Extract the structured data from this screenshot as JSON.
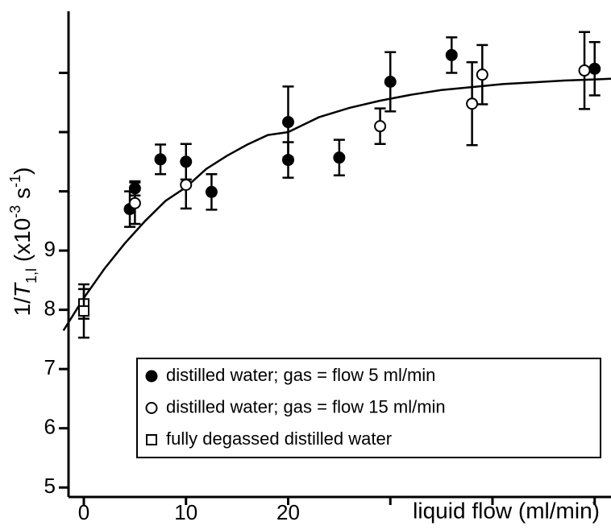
{
  "chart_data": {
    "type": "scatter",
    "xlabel": "liquid flow (ml/min)",
    "ylabel": [
      "1/T",
      "1,l",
      " (x10",
      "-3",
      " s",
      "-1",
      ")"
    ],
    "xlim": [
      -1.5,
      51.6
    ],
    "ylim": [
      4.84,
      13.04
    ],
    "xticks": [
      0,
      10,
      20,
      {
        "value": 30,
        "label": null
      },
      {
        "value": 40,
        "label": null
      },
      {
        "value": 50,
        "label": null
      }
    ],
    "yticks": [
      5,
      6,
      7,
      8,
      9,
      {
        "value": 10,
        "label": null
      },
      {
        "value": 11,
        "label": null
      },
      {
        "value": 12,
        "label": null
      }
    ],
    "legend": "lower right",
    "series": [
      {
        "name": "distilled water; gas = flow 5 ml/min",
        "marker": "filled-circle",
        "color": "#000000",
        "x": [
          4.5,
          5,
          7.5,
          10,
          12.5,
          20,
          20,
          25,
          30,
          36,
          50
        ],
        "values": [
          9.7,
          10.05,
          10.54,
          10.5,
          9.99,
          11.17,
          10.53,
          10.57,
          11.85,
          12.3,
          12.07
        ],
        "errors": [
          0.3,
          0.12,
          0.25,
          0.3,
          0.3,
          0.6,
          0.3,
          0.3,
          0.5,
          0.3,
          0.45
        ]
      },
      {
        "name": "distilled water; gas = flow 15 ml/min",
        "marker": "open-circle",
        "color": "#000000",
        "x": [
          5,
          10,
          29,
          38,
          39,
          49
        ],
        "values": [
          9.8,
          10.11,
          11.1,
          11.48,
          11.97,
          12.04
        ],
        "errors": [
          0.35,
          0.4,
          0.3,
          0.7,
          0.5,
          0.65
        ]
      },
      {
        "name": "fully degassed distilled water",
        "marker": "open-square",
        "color": "#000000",
        "x": [
          0,
          0
        ],
        "values": [
          8.1,
          7.98
        ],
        "errors": [
          0.25,
          0.45
        ]
      }
    ],
    "fit": {
      "color": "#000000",
      "x": [
        -2,
        0,
        2,
        4,
        6,
        8,
        10,
        12,
        14,
        16,
        18,
        20,
        23,
        26,
        29,
        32,
        35,
        38,
        41,
        44,
        47,
        50,
        51.6
      ],
      "values": [
        7.65,
        8.2,
        8.69,
        9.12,
        9.5,
        9.84,
        10.07,
        10.38,
        10.6,
        10.79,
        10.95,
        11.0,
        11.25,
        11.41,
        11.53,
        11.63,
        11.71,
        11.76,
        11.81,
        11.84,
        11.87,
        11.89,
        11.9
      ]
    }
  }
}
